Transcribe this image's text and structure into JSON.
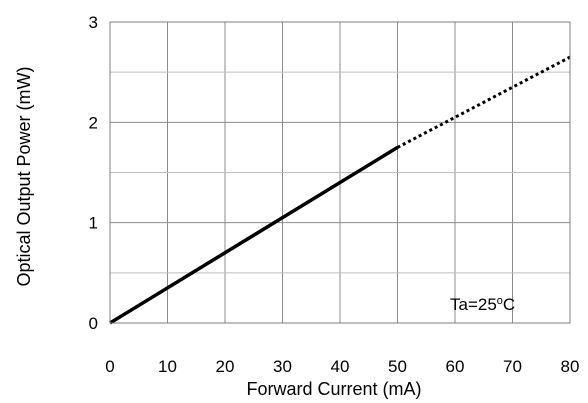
{
  "chart_data": {
    "type": "line",
    "title": "",
    "xlabel": "Forward Current (mA)",
    "ylabel": "Optical Output Power (mW)",
    "xlim": [
      0,
      80
    ],
    "ylim": [
      0,
      3
    ],
    "x_ticks": [
      0,
      10,
      20,
      30,
      40,
      50,
      60,
      70,
      80
    ],
    "y_ticks": [
      0,
      1,
      2,
      3
    ],
    "x_tick_labels": [
      "0",
      "10",
      "20",
      "30",
      "40",
      "50",
      "60",
      "70",
      "80"
    ],
    "y_tick_labels": [
      "0",
      "1",
      "2",
      "3"
    ],
    "y_minor_gridlines": [
      0.5,
      1.5,
      2.5
    ],
    "grid": true,
    "series": [
      {
        "style": "solid",
        "color": "#000000",
        "x": [
          0,
          50
        ],
        "y": [
          0,
          1.75
        ]
      },
      {
        "style": "dotted",
        "color": "#000000",
        "x": [
          50,
          80
        ],
        "y": [
          1.75,
          2.65
        ]
      }
    ],
    "annotation": {
      "prefix": "Ta=25",
      "superscript": "o",
      "suffix": "C"
    }
  }
}
